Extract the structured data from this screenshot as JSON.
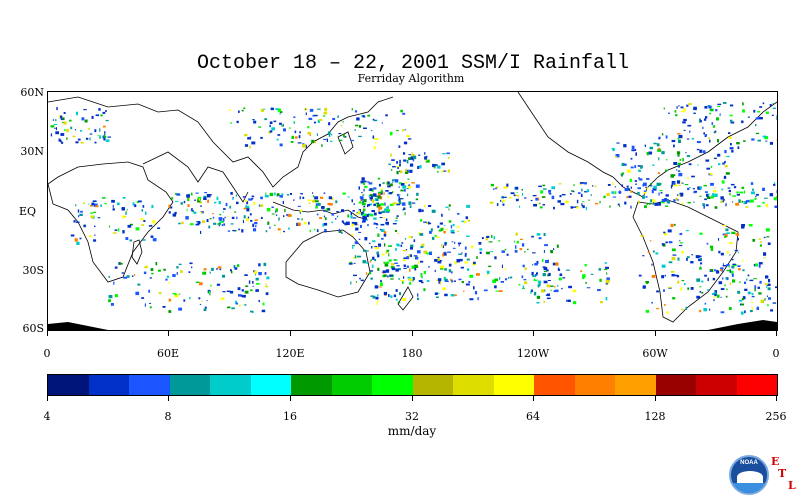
{
  "title": "October 18 – 22, 2001 SSM/I Rainfall",
  "subtitle": "Ferriday Algorithm",
  "map": {
    "lat_labels": [
      "60N",
      "30N",
      "EQ",
      "30S",
      "60S"
    ],
    "lon_labels": [
      "0",
      "60E",
      "120E",
      "180",
      "120W",
      "60W",
      "0"
    ],
    "projection": "cylindrical-equidistant",
    "lon_range": [
      0,
      360
    ],
    "lat_range": [
      -60,
      60
    ]
  },
  "colorbar": {
    "colors": [
      "#00157a",
      "#0030c8",
      "#1a55ff",
      "#00999a",
      "#00cccc",
      "#00ffff",
      "#009900",
      "#00cc00",
      "#00ff00",
      "#b5b500",
      "#dddd00",
      "#ffff00",
      "#ff5500",
      "#ff7f00",
      "#ffa000",
      "#990000",
      "#cc0000",
      "#ff0000"
    ],
    "tick_labels": [
      "4",
      "8",
      "16",
      "32",
      "64",
      "128",
      "256"
    ],
    "units": "mm/day"
  },
  "logo": {
    "text": "NOAA",
    "letters": [
      "E",
      "T",
      "L"
    ]
  }
}
